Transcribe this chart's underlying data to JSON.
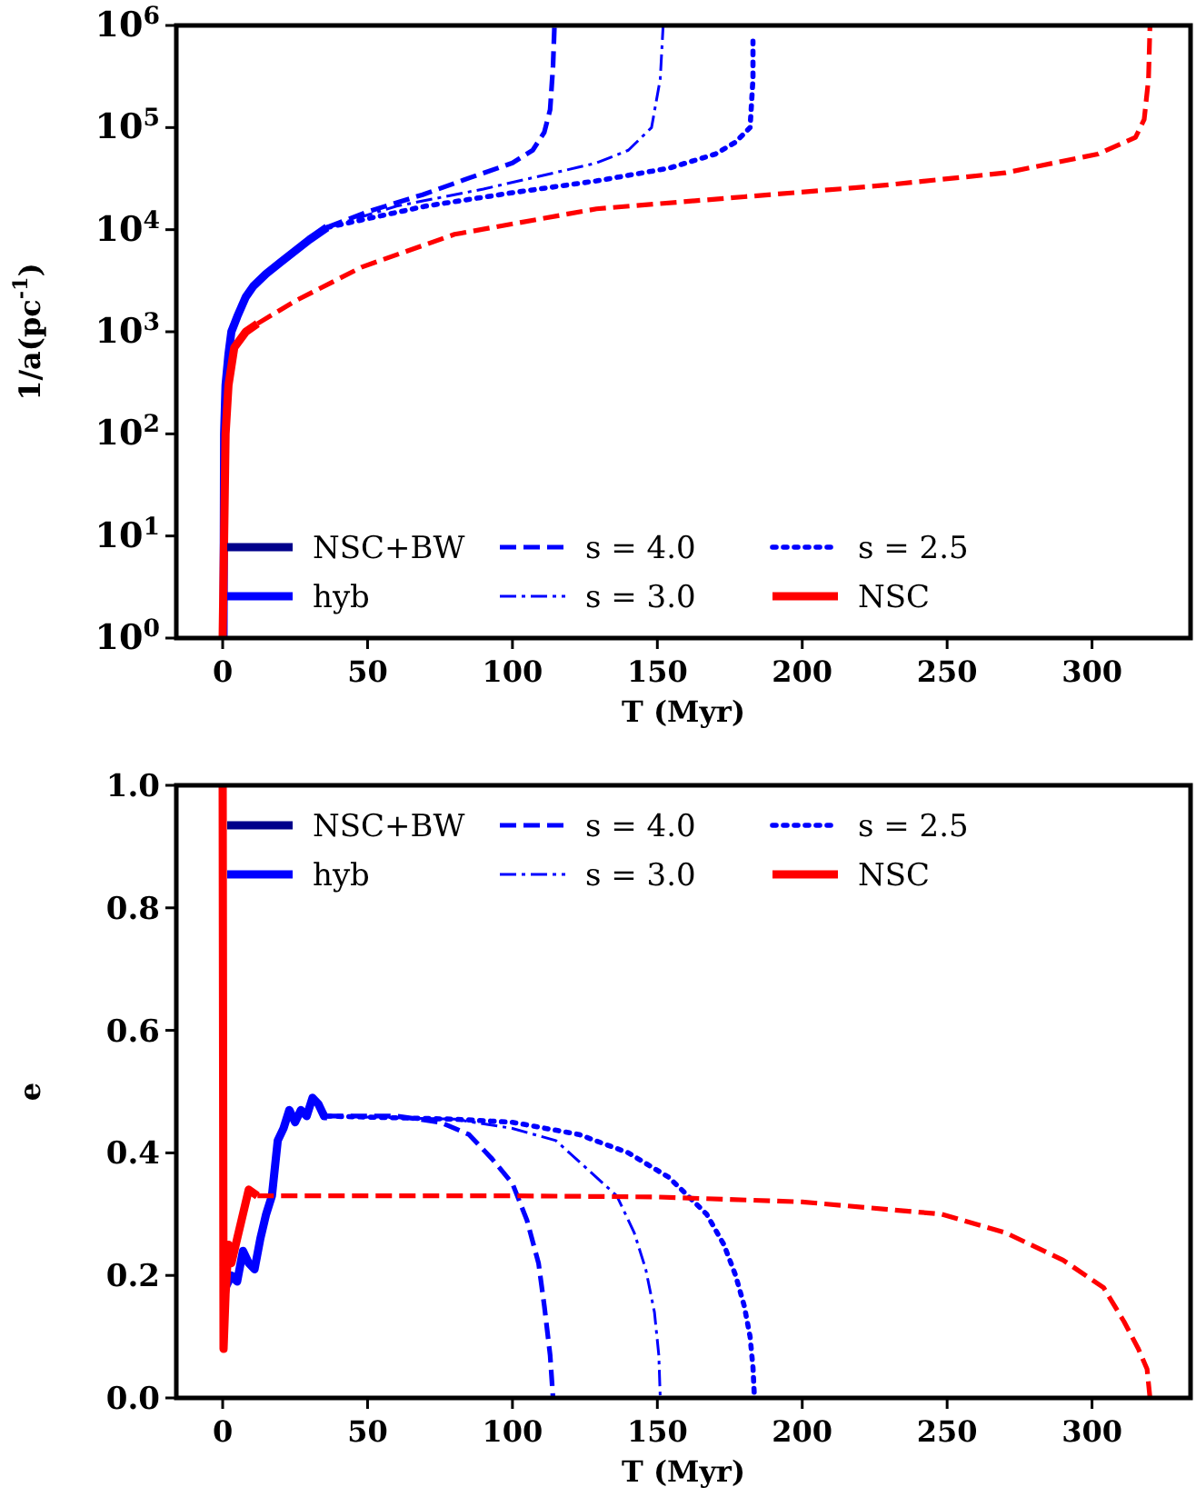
{
  "chart_data": [
    {
      "type": "line",
      "xlabel": "T (Myr)",
      "ylabel": "1/a(pc$^{-1}$)",
      "log": "y",
      "xlim": [
        -16,
        334
      ],
      "xticks": [
        0,
        50,
        100,
        150,
        200,
        250,
        300
      ],
      "ylim": [
        1,
        1000000
      ],
      "yticks": [
        {
          "value": 1,
          "label": "10$^{0}$"
        },
        {
          "value": 10,
          "label": "10$^{1}$"
        },
        {
          "value": 100,
          "label": "10$^{2}$"
        },
        {
          "value": 1000,
          "label": "10$^{3}$"
        },
        {
          "value": 10000,
          "label": "10$^{4}$"
        },
        {
          "value": 100000,
          "label": "10$^{5}$"
        },
        {
          "value": 1000000,
          "label": "10$^{6}$"
        }
      ],
      "legend": "bottom",
      "grid": false,
      "series": [
        {
          "name": "NSC+BW",
          "color": "#00008b",
          "line_style": "solid"
        },
        {
          "name": "hyb",
          "color": "#0000ff",
          "line_style": "solid",
          "x": [
            0.3,
            0.5,
            1,
            2,
            3,
            5,
            8,
            10.6,
            15,
            20,
            25,
            30,
            36
          ],
          "values": [
            1,
            100,
            300,
            600,
            1000,
            1400,
            2200,
            2800,
            3700,
            4800,
            6200,
            8000,
            10500
          ]
        },
        {
          "name": "s = 4.0",
          "color": "#0000ff",
          "line_style": "dashed",
          "x": [
            36,
            50,
            69,
            85,
            100,
            107,
            111,
            113,
            114,
            114.5
          ],
          "values": [
            10500,
            15000,
            22000,
            32000,
            45000,
            60000,
            90000,
            150000,
            400000,
            1000000
          ]
        },
        {
          "name": "s = 3.0",
          "color": "#0000ff",
          "line_style": "dashdot",
          "x": [
            36,
            60,
            90,
            123,
            129,
            140,
            148,
            151,
            152
          ],
          "values": [
            10500,
            17000,
            25000,
            41000,
            45000,
            60000,
            100000,
            300000,
            1000000
          ]
        },
        {
          "name": "s = 2.5",
          "color": "#0000ff",
          "line_style": "dotted",
          "x": [
            36,
            70,
            100,
            129,
            154,
            170,
            177,
            182,
            183,
            183
          ],
          "values": [
            10500,
            17000,
            23000,
            30000,
            40000,
            55000,
            72000,
            100000,
            300000,
            700000
          ]
        },
        {
          "name": "NSC",
          "color": "#ff0000",
          "line_style": "solid",
          "x": [
            0,
            1,
            2,
            4,
            8,
            12
          ],
          "values": [
            1,
            100,
            300,
            700,
            1000,
            1200
          ]
        },
        {
          "color": "#ff0000",
          "line_style": "dashed",
          "x": [
            12,
            25,
            48,
            80,
            129,
            180,
            227,
            270,
            302,
            315,
            318,
            319.5,
            320
          ],
          "values": [
            1200,
            2000,
            4300,
            9000,
            16000,
            21000,
            27000,
            36000,
            55000,
            80000,
            120000,
            300000,
            1000000
          ]
        }
      ]
    },
    {
      "type": "line",
      "xlabel": "T (Myr)",
      "ylabel": "e",
      "xlim": [
        -16,
        334
      ],
      "xticks": [
        0,
        50,
        100,
        150,
        200,
        250,
        300
      ],
      "ylim": [
        0,
        1
      ],
      "yticks": [
        {
          "value": 0,
          "label": "0.0"
        },
        {
          "value": 0.2,
          "label": "0.2"
        },
        {
          "value": 0.4,
          "label": "0.4"
        },
        {
          "value": 0.6,
          "label": "0.6"
        },
        {
          "value": 0.8,
          "label": "0.8"
        },
        {
          "value": 1,
          "label": "1.0"
        }
      ],
      "legend": "top",
      "grid": false,
      "series": [
        {
          "name": "NSC+BW",
          "color": "#00008b",
          "line_style": "solid"
        },
        {
          "name": "hyb",
          "color": "#0000ff",
          "line_style": "solid",
          "x": [
            1,
            3,
            5,
            7,
            9,
            11,
            13,
            15,
            17,
            19,
            21,
            23,
            25,
            27,
            29,
            31,
            33,
            35,
            36
          ],
          "values": [
            0.18,
            0.2,
            0.19,
            0.24,
            0.22,
            0.21,
            0.26,
            0.3,
            0.33,
            0.42,
            0.44,
            0.47,
            0.45,
            0.47,
            0.46,
            0.49,
            0.48,
            0.46,
            0.46
          ]
        },
        {
          "name": "s = 4.0",
          "color": "#0000ff",
          "line_style": "dashed",
          "x": [
            36,
            60,
            75,
            85,
            93,
            100,
            105,
            109,
            111,
            113,
            114
          ],
          "values": [
            0.46,
            0.46,
            0.45,
            0.43,
            0.39,
            0.35,
            0.29,
            0.22,
            0.15,
            0.07,
            0
          ]
        },
        {
          "name": "s = 3.0",
          "color": "#0000ff",
          "line_style": "dashdot",
          "x": [
            36,
            80,
            100,
            115,
            129,
            136,
            142,
            146,
            149,
            150.5,
            151
          ],
          "values": [
            0.46,
            0.455,
            0.44,
            0.42,
            0.36,
            0.33,
            0.27,
            0.21,
            0.14,
            0.07,
            0
          ]
        },
        {
          "name": "s = 2.5",
          "color": "#0000ff",
          "line_style": "dotted",
          "x": [
            36,
            80,
            100,
            123,
            140,
            154,
            167,
            173,
            177,
            180,
            182,
            183,
            183.5
          ],
          "values": [
            0.46,
            0.455,
            0.45,
            0.43,
            0.4,
            0.36,
            0.3,
            0.25,
            0.2,
            0.15,
            0.1,
            0.05,
            0
          ]
        },
        {
          "name": "NSC",
          "color": "#ff0000",
          "line_style": "solid",
          "x": [
            0,
            0.3,
            1,
            2,
            3,
            5,
            7,
            9,
            12
          ],
          "values": [
            1,
            0.08,
            0.17,
            0.25,
            0.22,
            0.26,
            0.3,
            0.34,
            0.33
          ]
        },
        {
          "color": "#ff0000",
          "line_style": "dashed",
          "x": [
            12,
            100,
            150,
            200,
            248,
            270,
            290,
            304,
            311,
            316,
            319,
            320
          ],
          "values": [
            0.33,
            0.33,
            0.328,
            0.32,
            0.3,
            0.27,
            0.225,
            0.18,
            0.125,
            0.08,
            0.047,
            0
          ]
        }
      ]
    }
  ]
}
